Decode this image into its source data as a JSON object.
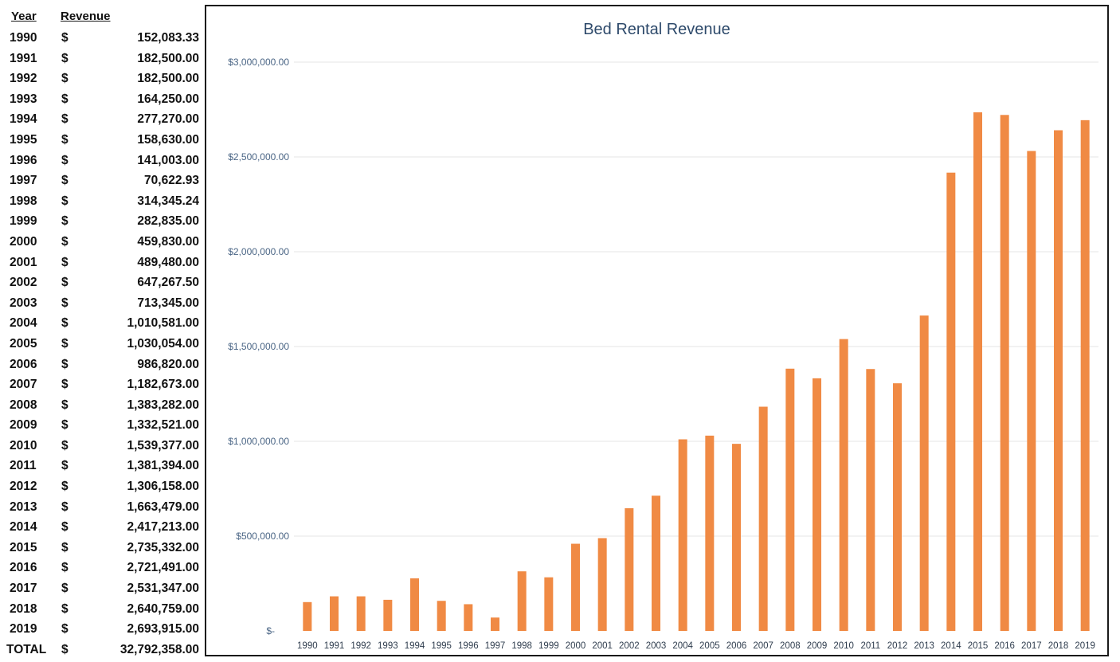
{
  "table": {
    "header_year": "Year",
    "header_revenue": "Revenue",
    "currency": "$",
    "rows": [
      {
        "year": "1990",
        "amount": "152,083.33"
      },
      {
        "year": "1991",
        "amount": "182,500.00"
      },
      {
        "year": "1992",
        "amount": "182,500.00"
      },
      {
        "year": "1993",
        "amount": "164,250.00"
      },
      {
        "year": "1994",
        "amount": "277,270.00"
      },
      {
        "year": "1995",
        "amount": "158,630.00"
      },
      {
        "year": "1996",
        "amount": "141,003.00"
      },
      {
        "year": "1997",
        "amount": "70,622.93"
      },
      {
        "year": "1998",
        "amount": "314,345.24"
      },
      {
        "year": "1999",
        "amount": "282,835.00"
      },
      {
        "year": "2000",
        "amount": "459,830.00"
      },
      {
        "year": "2001",
        "amount": "489,480.00"
      },
      {
        "year": "2002",
        "amount": "647,267.50"
      },
      {
        "year": "2003",
        "amount": "713,345.00"
      },
      {
        "year": "2004",
        "amount": "1,010,581.00"
      },
      {
        "year": "2005",
        "amount": "1,030,054.00"
      },
      {
        "year": "2006",
        "amount": "986,820.00"
      },
      {
        "year": "2007",
        "amount": "1,182,673.00"
      },
      {
        "year": "2008",
        "amount": "1,383,282.00"
      },
      {
        "year": "2009",
        "amount": "1,332,521.00"
      },
      {
        "year": "2010",
        "amount": "1,539,377.00"
      },
      {
        "year": "2011",
        "amount": "1,381,394.00"
      },
      {
        "year": "2012",
        "amount": "1,306,158.00"
      },
      {
        "year": "2013",
        "amount": "1,663,479.00"
      },
      {
        "year": "2014",
        "amount": "2,417,213.00"
      },
      {
        "year": "2015",
        "amount": "2,735,332.00"
      },
      {
        "year": "2016",
        "amount": "2,721,491.00"
      },
      {
        "year": "2017",
        "amount": "2,531,347.00"
      },
      {
        "year": "2018",
        "amount": "2,640,759.00"
      },
      {
        "year": "2019",
        "amount": "2,693,915.00"
      }
    ],
    "total_label": "TOTAL",
    "total_amount": "32,792,358.00"
  },
  "chart_data": {
    "type": "bar",
    "title": "Bed Rental Revenue",
    "xlabel": "",
    "ylabel": "",
    "categories": [
      "1990",
      "1991",
      "1992",
      "1993",
      "1994",
      "1995",
      "1996",
      "1997",
      "1998",
      "1999",
      "2000",
      "2001",
      "2002",
      "2003",
      "2004",
      "2005",
      "2006",
      "2007",
      "2008",
      "2009",
      "2010",
      "2011",
      "2012",
      "2013",
      "2014",
      "2015",
      "2016",
      "2017",
      "2018",
      "2019"
    ],
    "values": [
      152083.33,
      182500.0,
      182500.0,
      164250.0,
      277270.0,
      158630.0,
      141003.0,
      70622.93,
      314345.24,
      282835.0,
      459830.0,
      489480.0,
      647267.5,
      713345.0,
      1010581.0,
      1030054.0,
      986820.0,
      1182673.0,
      1383282.0,
      1332521.0,
      1539377.0,
      1381394.0,
      1306158.0,
      1663479.0,
      2417213.0,
      2735332.0,
      2721491.0,
      2531347.0,
      2640759.0,
      2693915.0
    ],
    "ylim": [
      0,
      3000000
    ],
    "yticks": [
      0,
      500000,
      1000000,
      1500000,
      2000000,
      2500000,
      3000000
    ],
    "ytick_labels": [
      "$-",
      "$500,000.00",
      "$1,000,000.00",
      "$1,500,000.00",
      "$2,000,000.00",
      "$2,500,000.00",
      "$3,000,000.00"
    ],
    "grid": true,
    "legend": "none",
    "bar_color": "#f08a44",
    "grid_color": "#e6e6e6",
    "title_color": "#2e4a6b"
  }
}
